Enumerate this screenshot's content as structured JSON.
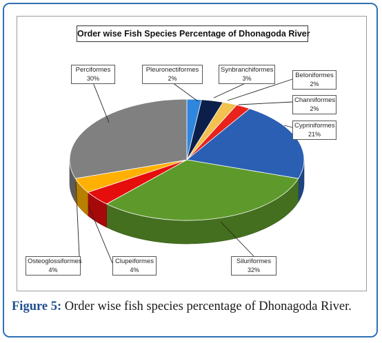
{
  "chart_data": {
    "type": "pie",
    "title": "Order wise Fish Species Percentage of Dhonagoda River",
    "categories": [
      "Pleuronectiformes",
      "Synbranchiformes",
      "Beloniformes",
      "Channiformes",
      "Cypriniformes",
      "Siluriformes",
      "Clupeiformes",
      "Osteoglossiformes",
      "Perciformes"
    ],
    "values": [
      2,
      3,
      2,
      2,
      21,
      32,
      4,
      4,
      30
    ],
    "value_labels": [
      "2%",
      "3%",
      "2%",
      "2%",
      "21%",
      "32%",
      "4%",
      "4%",
      "30%"
    ],
    "colors": [
      "#2e86de",
      "#0b1f4a",
      "#f2c14e",
      "#e8231c",
      "#2a5fb3",
      "#5e9a2b",
      "#e60d0d",
      "#ffb000",
      "#808080"
    ],
    "style": "3d-pie",
    "legend": "none"
  },
  "caption": {
    "label": "Figure 5:",
    "text": " Order wise fish species percentage of Dhonagoda River."
  }
}
